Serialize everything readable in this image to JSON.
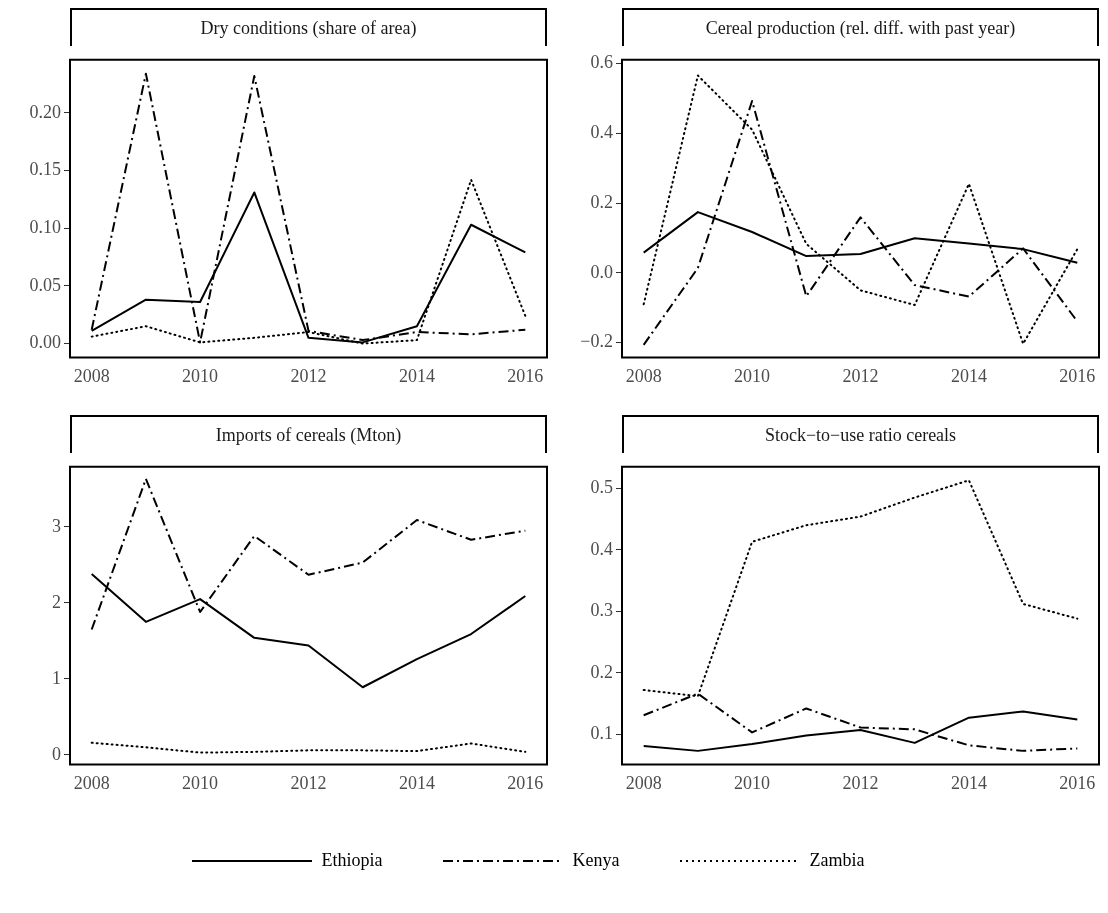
{
  "chart_data": [
    {
      "type": "line",
      "title": "Dry conditions (share of area)",
      "x": [
        2008,
        2009,
        2010,
        2011,
        2012,
        2013,
        2014,
        2015,
        2016
      ],
      "xlim": [
        2007.6,
        2016.4
      ],
      "xticks": [
        2008,
        2010,
        2012,
        2014,
        2016
      ],
      "ylim": [
        -0.012,
        0.246
      ],
      "yticks": [
        {
          "value": 0,
          "label": "0.00"
        },
        {
          "value": 0.05,
          "label": "0.05"
        },
        {
          "value": 0.1,
          "label": "0.10"
        },
        {
          "value": 0.15,
          "label": "0.15"
        },
        {
          "value": 0.2,
          "label": "0.20"
        }
      ],
      "grid": false,
      "legend": "bottom",
      "series": [
        {
          "name": "Ethiopia",
          "color": "#000000",
          "line_style": "solid",
          "values": [
            0.011,
            0.038,
            0.036,
            0.131,
            0.005,
            0.001,
            0.015,
            0.103,
            0.079
          ]
        },
        {
          "name": "Kenya",
          "color": "#000000",
          "line_style": "dashed",
          "values": [
            0.012,
            0.234,
            0.001,
            0.232,
            0.011,
            0.003,
            0.01,
            0.008,
            0.012
          ]
        },
        {
          "name": "Zambia",
          "color": "#000000",
          "line_style": "dotted",
          "values": [
            0.006,
            0.015,
            0.001,
            0.005,
            0.01,
            0.0,
            0.003,
            0.142,
            0.024
          ]
        }
      ]
    },
    {
      "type": "line",
      "title": "Cereal production (rel. diff. with past year)",
      "x": [
        2008,
        2009,
        2010,
        2011,
        2012,
        2013,
        2014,
        2015,
        2016
      ],
      "xlim": [
        2007.6,
        2016.4
      ],
      "xticks": [
        2008,
        2010,
        2012,
        2014,
        2016
      ],
      "ylim": [
        -0.242,
        0.61
      ],
      "yticks": [
        {
          "value": -0.2,
          "label": "−0.2"
        },
        {
          "value": 0,
          "label": "0.0"
        },
        {
          "value": 0.2,
          "label": "0.2"
        },
        {
          "value": 0.4,
          "label": "0.4"
        },
        {
          "value": 0.6,
          "label": "0.6"
        }
      ],
      "grid": false,
      "series": [
        {
          "color": "#000000",
          "line_style": "solid",
          "values": [
            0.058,
            0.174,
            0.117,
            0.048,
            0.054,
            0.099,
            0.084,
            0.068,
            0.029
          ]
        },
        {
          "color": "#000000",
          "line_style": "dashed",
          "values": [
            -0.206,
            0.014,
            0.492,
            -0.067,
            0.159,
            -0.035,
            -0.068,
            0.07,
            -0.139
          ]
        },
        {
          "color": "#000000",
          "line_style": "dotted",
          "values": [
            -0.09,
            0.565,
            0.41,
            0.083,
            -0.05,
            -0.092,
            0.255,
            -0.203,
            0.068
          ]
        }
      ]
    },
    {
      "type": "line",
      "title": "Imports of cereals (Mton)",
      "x": [
        2008,
        2009,
        2010,
        2011,
        2012,
        2013,
        2014,
        2015,
        2016
      ],
      "xlim": [
        2007.6,
        2016.4
      ],
      "xticks": [
        2008,
        2010,
        2012,
        2014,
        2016
      ],
      "ylim": [
        -0.125,
        3.79
      ],
      "yticks": [
        0,
        1,
        2,
        3
      ],
      "grid": false,
      "series": [
        {
          "color": "#000000",
          "line_style": "solid",
          "values": [
            2.38,
            1.75,
            2.05,
            1.54,
            1.44,
            0.89,
            1.26,
            1.59,
            2.09
          ]
        },
        {
          "color": "#000000",
          "line_style": "dashed",
          "values": [
            1.65,
            3.63,
            1.88,
            2.88,
            2.37,
            2.53,
            3.09,
            2.83,
            2.95
          ]
        },
        {
          "color": "#000000",
          "line_style": "dotted",
          "values": [
            0.16,
            0.1,
            0.03,
            0.04,
            0.06,
            0.06,
            0.05,
            0.15,
            0.04
          ]
        }
      ]
    },
    {
      "type": "line",
      "title": "Stock−to−use ratio cereals",
      "x": [
        2008,
        2009,
        2010,
        2011,
        2012,
        2013,
        2014,
        2015,
        2016
      ],
      "xlim": [
        2007.6,
        2016.4
      ],
      "xticks": [
        2008,
        2010,
        2012,
        2014,
        2016
      ],
      "ylim": [
        0.051,
        0.535
      ],
      "yticks": [
        0.1,
        0.2,
        0.3,
        0.4,
        0.5
      ],
      "grid": false,
      "series": [
        {
          "color": "#000000",
          "line_style": "solid",
          "values": [
            0.081,
            0.073,
            0.084,
            0.098,
            0.107,
            0.086,
            0.127,
            0.137,
            0.124
          ]
        },
        {
          "color": "#000000",
          "line_style": "dashed",
          "values": [
            0.131,
            0.166,
            0.103,
            0.142,
            0.111,
            0.108,
            0.082,
            0.073,
            0.077
          ]
        },
        {
          "color": "#000000",
          "line_style": "dotted",
          "values": [
            0.172,
            0.162,
            0.413,
            0.44,
            0.454,
            0.485,
            0.513,
            0.312,
            0.288
          ]
        }
      ]
    }
  ]
}
